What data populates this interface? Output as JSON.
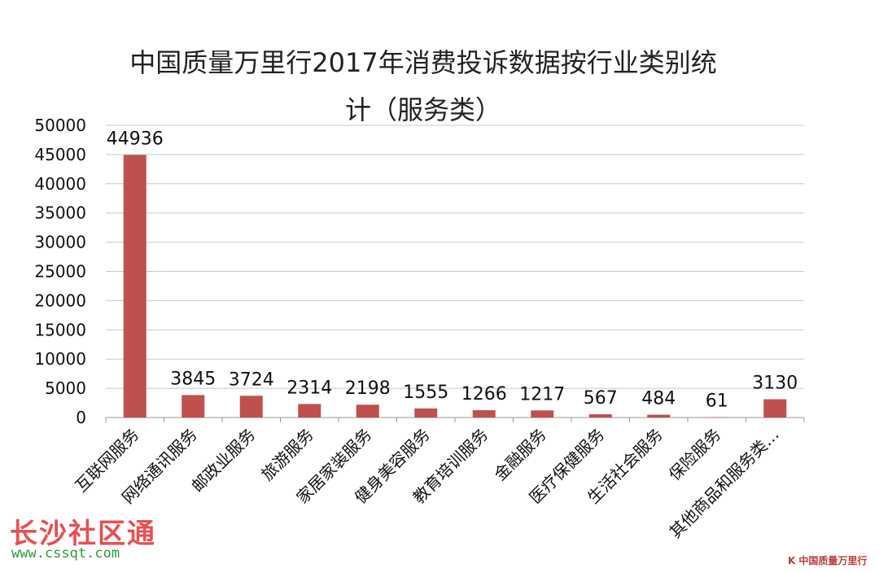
{
  "chart_data": {
    "type": "bar",
    "title_line1": "中国质量万里行2017年消费投诉数据按行业类别统",
    "title_line2": "计（服务类）",
    "categories": [
      "互联网服务",
      "网络通讯服务",
      "邮政业服务",
      "旅游服务",
      "家居家装服务",
      "健身美容服务",
      "教育培训服务",
      "金融服务",
      "医疗保健服务",
      "生活社会服务",
      "保险服务",
      "其他商品和服务类…"
    ],
    "values": [
      44936,
      3845,
      3724,
      2314,
      2198,
      1555,
      1266,
      1217,
      567,
      484,
      61,
      3130
    ],
    "yticks": [
      0,
      5000,
      10000,
      15000,
      20000,
      25000,
      30000,
      35000,
      40000,
      45000,
      50000
    ],
    "ylim": [
      0,
      50000
    ],
    "grid": true,
    "bar_color": "#c0504d"
  },
  "watermark": {
    "text": "长沙社区通",
    "url": "www.cssqt.com"
  },
  "brand": {
    "mark": "K",
    "text": "中国质量万里行"
  }
}
